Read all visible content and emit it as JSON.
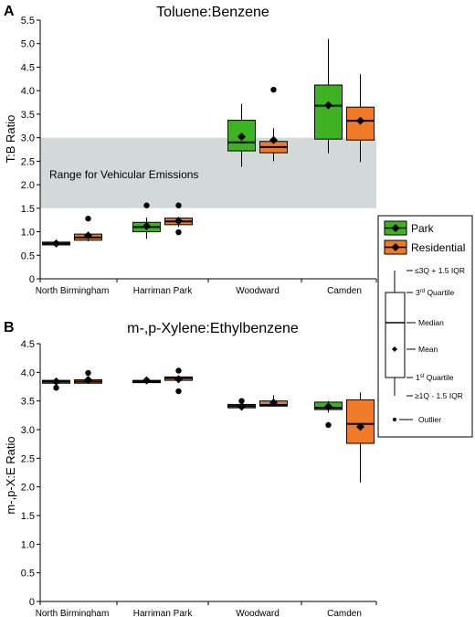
{
  "colors": {
    "park": "#3db324",
    "residential": "#f07a27",
    "shade": "#d3d9d9"
  },
  "legend": {
    "park_label": "Park",
    "residential_label": "Residential",
    "upper_whisker_label": "≤3Q + 1.5 IQR",
    "q3_label": "3rd Quartile",
    "median_label": "Median",
    "mean_label": "Mean",
    "q1_label": "1st Quartile",
    "lower_whisker_label": "≥1Q - 1.5 IQR",
    "outlier_label": "Outlier"
  },
  "chart_data": [
    {
      "panel_letter": "A",
      "type": "box",
      "title": "Toluene:Benzene",
      "ylabel": "T:B Ratio",
      "xlabel": "",
      "ylim": [
        0,
        5.5
      ],
      "yticks": [
        "0",
        "0.5",
        "1.0",
        "1.5",
        "2.0",
        "2.5",
        "3.0",
        "3.5",
        "4.0",
        "4.5",
        "5.0",
        "5.5"
      ],
      "categories": [
        "North Birmingham",
        "Harriman Park",
        "Woodward",
        "Camden"
      ],
      "annotation": {
        "text": "Range for Vehicular Emissions",
        "range": [
          1.5,
          3.0
        ]
      },
      "series": [
        {
          "name": "Park",
          "boxes": [
            {
              "whisker_low": 0.71,
              "q1": 0.72,
              "median": 0.75,
              "q3": 0.78,
              "whisker_high": 0.79,
              "mean": 0.75,
              "outliers": []
            },
            {
              "whisker_low": 0.85,
              "q1": 1.0,
              "median": 1.1,
              "q3": 1.2,
              "whisker_high": 1.3,
              "mean": 1.12,
              "outliers": [
                1.56
              ]
            },
            {
              "whisker_low": 2.38,
              "q1": 2.72,
              "median": 2.9,
              "q3": 3.37,
              "whisker_high": 3.72,
              "mean": 3.02,
              "outliers": []
            },
            {
              "whisker_low": 2.67,
              "q1": 2.97,
              "median": 3.68,
              "q3": 4.12,
              "whisker_high": 5.1,
              "mean": 3.69,
              "outliers": []
            }
          ]
        },
        {
          "name": "Residential",
          "boxes": [
            {
              "whisker_low": 0.8,
              "q1": 0.82,
              "median": 0.88,
              "q3": 0.95,
              "whisker_high": 1.0,
              "mean": 0.92,
              "outliers": [
                1.28
              ]
            },
            {
              "whisker_low": 1.1,
              "q1": 1.15,
              "median": 1.22,
              "q3": 1.29,
              "whisker_high": 1.32,
              "mean": 1.23,
              "outliers": [
                1.56,
                0.99
              ]
            },
            {
              "whisker_low": 2.5,
              "q1": 2.68,
              "median": 2.8,
              "q3": 2.92,
              "whisker_high": 3.2,
              "mean": 2.95,
              "outliers": [
                4.02
              ]
            },
            {
              "whisker_low": 2.48,
              "q1": 2.95,
              "median": 3.36,
              "q3": 3.65,
              "whisker_high": 4.35,
              "mean": 3.36,
              "outliers": []
            }
          ]
        }
      ]
    },
    {
      "panel_letter": "B",
      "type": "box",
      "title": "m-,p-Xylene:Ethylbenzene",
      "ylabel": "m-,p-X:E Ratio",
      "xlabel": "",
      "ylim": [
        0,
        4.5
      ],
      "yticks": [
        "0",
        "0.5",
        "1.0",
        "1.5",
        "2.0",
        "2.5",
        "3.0",
        "3.5",
        "4.0",
        "4.5"
      ],
      "categories": [
        "North Birmingham",
        "Harriman Park",
        "Woodward",
        "Camden"
      ],
      "series": [
        {
          "name": "Park",
          "boxes": [
            {
              "whisker_low": 3.8,
              "q1": 3.81,
              "median": 3.84,
              "q3": 3.86,
              "whisker_high": 3.87,
              "mean": 3.84,
              "outliers": [
                3.73
              ]
            },
            {
              "whisker_low": 3.82,
              "q1": 3.82,
              "median": 3.84,
              "q3": 3.86,
              "whisker_high": 3.87,
              "mean": 3.86,
              "outliers": []
            },
            {
              "whisker_low": 3.38,
              "q1": 3.38,
              "median": 3.41,
              "q3": 3.44,
              "whisker_high": 3.45,
              "mean": 3.4,
              "outliers": [
                3.5
              ]
            },
            {
              "whisker_low": 3.3,
              "q1": 3.35,
              "median": 3.38,
              "q3": 3.48,
              "whisker_high": 3.5,
              "mean": 3.4,
              "outliers": [
                3.08
              ]
            }
          ]
        },
        {
          "name": "Residential",
          "boxes": [
            {
              "whisker_low": 3.8,
              "q1": 3.81,
              "median": 3.84,
              "q3": 3.87,
              "whisker_high": 3.9,
              "mean": 3.87,
              "outliers": [
                3.99
              ]
            },
            {
              "whisker_low": 3.86,
              "q1": 3.86,
              "median": 3.9,
              "q3": 3.92,
              "whisker_high": 3.93,
              "mean": 3.88,
              "outliers": [
                4.03,
                3.67
              ]
            },
            {
              "whisker_low": 3.4,
              "q1": 3.41,
              "median": 3.43,
              "q3": 3.5,
              "whisker_high": 3.6,
              "mean": 3.47,
              "outliers": []
            },
            {
              "whisker_low": 2.08,
              "q1": 2.76,
              "median": 3.1,
              "q3": 3.52,
              "whisker_high": 3.65,
              "mean": 3.05,
              "outliers": []
            }
          ]
        }
      ]
    }
  ]
}
